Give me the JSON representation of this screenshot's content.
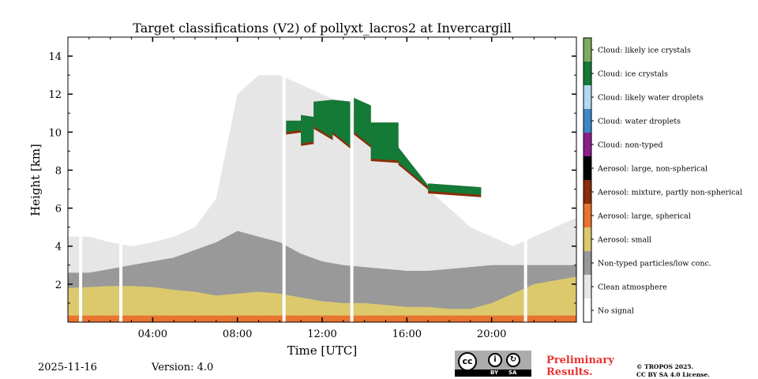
{
  "chart_data": {
    "type": "heatmap",
    "title": "Target classifications (V2) of pollyxt_lacros2 at Invercargill",
    "xlabel": "Time [UTC]",
    "ylabel": "Height [km]",
    "xlim": [
      0,
      24
    ],
    "ylim": [
      0,
      15
    ],
    "xticks": [
      {
        "value": 4,
        "label": "04:00"
      },
      {
        "value": 8,
        "label": "08:00"
      },
      {
        "value": 12,
        "label": "12:00"
      },
      {
        "value": 16,
        "label": "16:00"
      },
      {
        "value": 20,
        "label": "20:00"
      }
    ],
    "yticks": [
      {
        "value": 2,
        "label": "2"
      },
      {
        "value": 4,
        "label": "4"
      },
      {
        "value": 6,
        "label": "6"
      },
      {
        "value": 8,
        "label": "8"
      },
      {
        "value": 10,
        "label": "10"
      },
      {
        "value": 12,
        "label": "12"
      },
      {
        "value": 14,
        "label": "14"
      }
    ],
    "classes": [
      {
        "label": "No signal",
        "color": "#ffffff"
      },
      {
        "label": "Clean atmosphere",
        "color": "#e6e6e6"
      },
      {
        "label": "Non-typed particles/low conc.",
        "color": "#999999"
      },
      {
        "label": "Aerosol: small",
        "color": "#dcc96e"
      },
      {
        "label": "Aerosol: large, spherical",
        "color": "#e8742f"
      },
      {
        "label": "Aerosol: mixture, partly non-spherical",
        "color": "#8a2d08"
      },
      {
        "label": "Aerosol: large, non-spherical",
        "color": "#000000"
      },
      {
        "label": "Cloud: non-typed",
        "color": "#8b1e8b"
      },
      {
        "label": "Cloud: water droplets",
        "color": "#3b88c7"
      },
      {
        "label": "Cloud: likely water droplets",
        "color": "#b3d9f2"
      },
      {
        "label": "Cloud: ice crystals",
        "color": "#137a37"
      },
      {
        "label": "Cloud: likely ice crystals",
        "color": "#7cad5e"
      }
    ],
    "regions": {
      "large_spherical_top_km": 0.35,
      "small_aerosol_top_km": [
        1.8,
        1.85,
        1.9,
        1.9,
        1.85,
        1.7,
        1.6,
        1.4,
        1.5,
        1.6,
        1.5,
        1.3,
        1.1,
        1.0,
        1.0,
        0.9,
        0.8,
        0.8,
        0.7,
        0.7,
        1.0,
        1.5,
        2.0,
        2.2,
        2.4
      ],
      "non_typed_top_km": [
        2.6,
        2.6,
        2.8,
        3.0,
        3.2,
        3.4,
        3.8,
        4.2,
        4.8,
        4.5,
        4.2,
        3.6,
        3.2,
        3.0,
        2.9,
        2.8,
        2.7,
        2.7,
        2.8,
        2.9,
        3.0,
        3.0,
        3.0,
        3.0,
        3.0
      ],
      "clean_atmosphere_top_km": [
        4.5,
        4.5,
        4.2,
        4.0,
        4.2,
        4.5,
        5.0,
        6.5,
        12.0,
        13.0,
        13.0,
        12.5,
        12.0,
        11.5,
        10.5,
        9.5,
        8.0,
        7.0,
        6.0,
        5.0,
        4.5,
        4.0,
        4.5,
        5.0,
        5.5
      ],
      "ice_cloud_segments": [
        {
          "x": [
            10.3,
            11.0
          ],
          "bottom_km": [
            10.0,
            10.1
          ],
          "top_km": [
            10.6,
            10.6
          ]
        },
        {
          "x": [
            11.0,
            11.6
          ],
          "bottom_km": [
            9.4,
            9.5
          ],
          "top_km": [
            10.9,
            10.8
          ]
        },
        {
          "x": [
            11.6,
            12.5
          ],
          "bottom_km": [
            10.3,
            9.7
          ],
          "top_km": [
            11.6,
            11.7
          ]
        },
        {
          "x": [
            12.5,
            13.4
          ],
          "bottom_km": [
            10.0,
            9.2
          ],
          "top_km": [
            11.7,
            11.6
          ]
        },
        {
          "x": [
            13.5,
            14.3
          ],
          "bottom_km": [
            10.0,
            9.3
          ],
          "top_km": [
            11.8,
            11.4
          ]
        },
        {
          "x": [
            14.3,
            15.6
          ],
          "bottom_km": [
            8.6,
            8.5
          ],
          "top_km": [
            10.5,
            10.5
          ]
        },
        {
          "x": [
            15.6,
            17.0
          ],
          "bottom_km": [
            8.4,
            7.1
          ],
          "top_km": [
            9.2,
            7.2
          ]
        },
        {
          "x": [
            17.0,
            19.5
          ],
          "bottom_km": [
            6.9,
            6.7
          ],
          "top_km": [
            7.3,
            7.1
          ]
        }
      ],
      "data_gaps_hours": [
        0.6,
        2.5,
        10.2,
        13.4,
        21.6
      ]
    }
  },
  "footer": {
    "date": "2025-11-16",
    "version": "Version: 4.0",
    "preliminary_line1": "Preliminary",
    "preliminary_line2": "Results.",
    "copyright_line1": "© TROPOS 2025.",
    "copyright_line2": "CC BY SA 4.0 License.",
    "license_badge": {
      "cc_text": "cc",
      "by_icon_text": "i",
      "sa_icon_text": "↻",
      "by_label": "BY",
      "sa_label": "SA"
    }
  }
}
